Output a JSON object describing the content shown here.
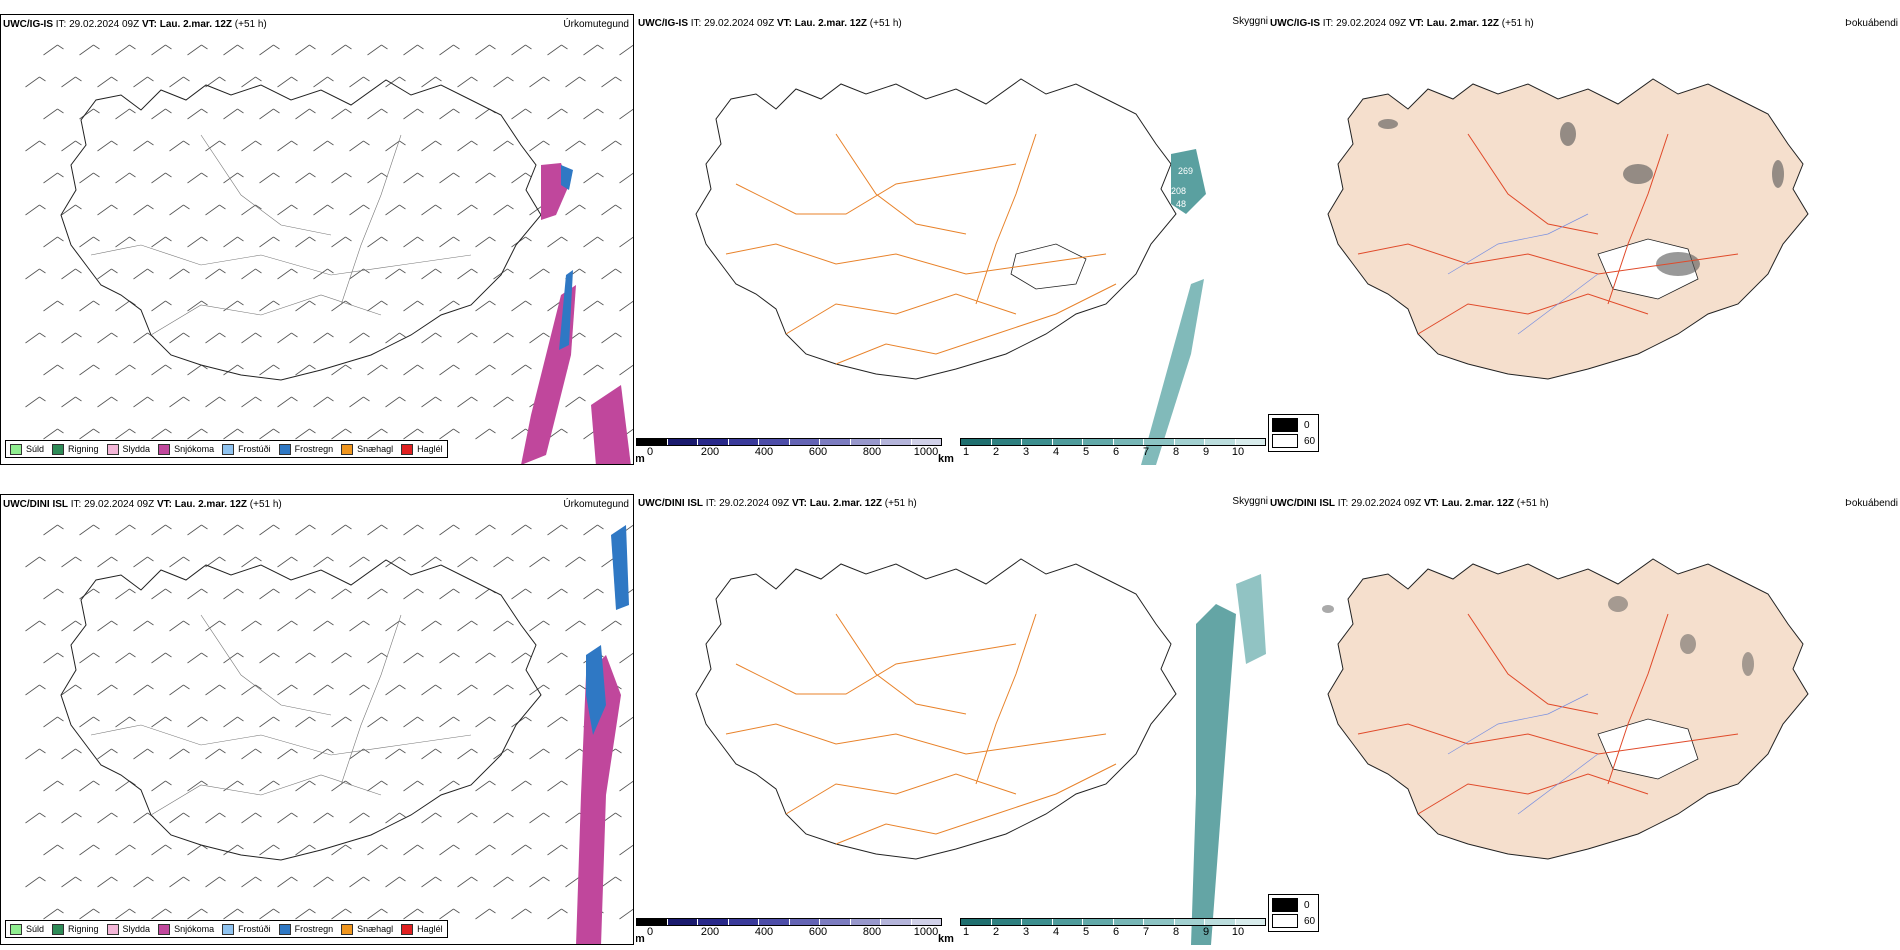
{
  "rows": [
    {
      "model": "UWC/IG-IS",
      "it_label": "IT:",
      "it_value": "29.02.2024 09Z",
      "vt_label": "VT:",
      "vt_value": "Lau. 2.mar. 12Z",
      "lead": "(+51 h)"
    },
    {
      "model": "UWC/DINI ISL",
      "it_label": "IT:",
      "it_value": "29.02.2024 09Z",
      "vt_label": "VT:",
      "vt_value": "Lau. 2.mar. 12Z",
      "lead": "(+51 h)"
    }
  ],
  "panel_titles": {
    "precip": "Úrkomutegund",
    "visibility": "Skyggni",
    "fog": "Þokuábendi"
  },
  "precip_legend": [
    {
      "label": "Súld",
      "color": "#90ee90"
    },
    {
      "label": "Rigning",
      "color": "#2e8b57"
    },
    {
      "label": "Slydda",
      "color": "#f4b6d8"
    },
    {
      "label": "Snjókoma",
      "color": "#c0479c"
    },
    {
      "label": "Frostúði",
      "color": "#8fc3f0"
    },
    {
      "label": "Frostregn",
      "color": "#2f78c4"
    },
    {
      "label": "Snæhagl",
      "color": "#f0961e"
    },
    {
      "label": "Haglél",
      "color": "#e02020"
    }
  ],
  "cloud_base_scale": {
    "unit": "m",
    "ticks": [
      "0",
      "200",
      "400",
      "600",
      "800",
      "1000"
    ],
    "colors": [
      "#000000",
      "#1a1a6e",
      "#28288a",
      "#3a3a9a",
      "#4d4da8",
      "#6464b4",
      "#7c7cc0",
      "#9898cc",
      "#b4b4da",
      "#d0d0e8"
    ]
  },
  "visibility_scale": {
    "unit": "km",
    "ticks": [
      "1",
      "2",
      "3",
      "4",
      "5",
      "6",
      "7",
      "8",
      "9",
      "10"
    ],
    "colors": [
      "#1f6f6f",
      "#2e8080",
      "#3d8f8f",
      "#4f9c9c",
      "#62a9a9",
      "#77b6b6",
      "#8cc3c3",
      "#a2d0d0",
      "#bbdddd",
      "#d8ecec"
    ]
  },
  "fog_legend": [
    {
      "label": "0",
      "color": "#000000"
    },
    {
      "label": "60",
      "color": "#ffffff"
    }
  ],
  "cloud_labels_top": [
    "269",
    "208",
    "48"
  ]
}
